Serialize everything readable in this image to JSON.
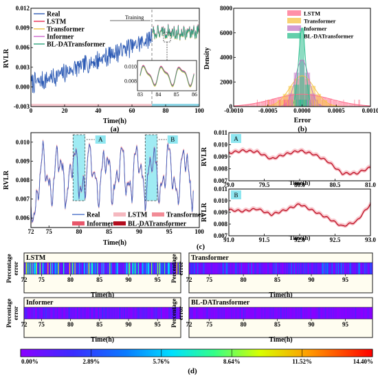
{
  "figure": {
    "panel_labels": [
      "(a)",
      "(b)",
      "(c)",
      "(d)"
    ]
  },
  "chart_data": [
    {
      "id": "a",
      "type": "line",
      "xlabel": "Time(h)",
      "ylabel": "RVLR",
      "xlim": [
        0,
        100
      ],
      "ylim": [
        -0.003,
        0.012
      ],
      "xticks": [
        "0",
        "20",
        "40",
        "60",
        "80",
        "100"
      ],
      "yticks": [
        "-0.003",
        "0.000",
        "0.003",
        "0.006",
        "0.009",
        "0.012"
      ],
      "legend": [
        "Real",
        "LSTM",
        "Transformer",
        "Informer",
        "BL-DATransformer"
      ],
      "colors": {
        "Real": "#2d5bb5",
        "LSTM": "#e8294e",
        "Transformer": "#f0c040",
        "Informer": "#cc66cc",
        "BL-DATransformer": "#2aa37b"
      },
      "training_label": "Training",
      "training_end": 72,
      "trend": {
        "x": [
          0,
          10,
          20,
          30,
          40,
          50,
          60,
          70,
          72,
          80,
          90,
          100
        ],
        "y": [
          0.0005,
          0.0012,
          0.0022,
          0.0032,
          0.0041,
          0.0052,
          0.0062,
          0.0072,
          0.0082,
          0.0083,
          0.0081,
          0.0085
        ]
      },
      "inset": {
        "xlim": [
          83,
          86
        ],
        "ylim": [
          0.007,
          0.0105
        ],
        "xticks": [
          "83",
          "84",
          "85",
          "86"
        ],
        "yticks": [
          "0.008",
          "0.010"
        ]
      }
    },
    {
      "id": "b",
      "type": "bar",
      "xlabel": "Error",
      "ylabel": "Density",
      "xlim": [
        -0.001,
        0.001
      ],
      "ylim": [
        0,
        8000
      ],
      "xticks": [
        "-0.0010",
        "-0.0005",
        "0.0000",
        "0.0005",
        "0.0010"
      ],
      "yticks": [
        "0",
        "2000",
        "4000",
        "6000",
        "8000"
      ],
      "legend": [
        "LSTM",
        "Transformer",
        "Informer",
        "BL-DATransformer"
      ],
      "colors": {
        "LSTM": "#ff6b8a",
        "Transformer": "#f5c343",
        "Informer": "#c27ac7",
        "BL-DATransformer": "#2fbf8f"
      },
      "series": [
        {
          "name": "LSTM",
          "sigma": 0.00042,
          "peak": 1000
        },
        {
          "name": "Transformer",
          "sigma": 0.00018,
          "peak": 2500
        },
        {
          "name": "Informer",
          "sigma": 0.0001,
          "peak": 3800
        },
        {
          "name": "BL-DATransformer",
          "sigma": 5e-05,
          "peak": 6400
        }
      ]
    },
    {
      "id": "c-main",
      "type": "line",
      "xlabel": "Time(h)",
      "ylabel": "RVLR",
      "xlim": [
        72,
        100
      ],
      "ylim": [
        0.0055,
        0.0105
      ],
      "xticks": [
        "72",
        "75",
        "80",
        "85",
        "90",
        "95",
        "100"
      ],
      "yticks": [
        "0.006",
        "0.007",
        "0.008",
        "0.009",
        "0.010"
      ],
      "legend": [
        "Real",
        "LSTM",
        "Transformer",
        "Informer",
        "BL-DATransformer"
      ],
      "colors": {
        "Real": "#3b63c4",
        "LSTM": "#f5b8bf",
        "Transformer": "#f28b96",
        "Informer": "#e8576b",
        "BL-DATransformer": "#b30d1e"
      },
      "zones": [
        {
          "label": "A",
          "x": [
            79,
            81
          ]
        },
        {
          "label": "B",
          "x": [
            91,
            93
          ]
        }
      ]
    },
    {
      "id": "c-A",
      "type": "line",
      "label": "A",
      "xlabel": "Time(h)",
      "ylabel": "RVLR",
      "xlim": [
        79,
        81
      ],
      "ylim": [
        0.007,
        0.011
      ],
      "xticks": [
        "79.0",
        "79.5",
        "80.0",
        "80.5",
        "81.0"
      ],
      "yticks": [
        "0.007",
        "0.008",
        "0.009",
        "0.010",
        "0.011"
      ],
      "keypoints": {
        "x": [
          79.0,
          79.2,
          79.4,
          79.6,
          79.8,
          80.0,
          80.2,
          80.4,
          80.6,
          80.8,
          81.0
        ],
        "y": [
          0.0093,
          0.0095,
          0.0094,
          0.0088,
          0.0092,
          0.0095,
          0.0092,
          0.0086,
          0.0076,
          0.0076,
          0.0081
        ]
      }
    },
    {
      "id": "c-B",
      "type": "line",
      "label": "B",
      "xlabel": "Time(h)",
      "ylabel": "RVLR",
      "xlim": [
        91,
        93
      ],
      "ylim": [
        0.007,
        0.011
      ],
      "xticks": [
        "91.0",
        "91.5",
        "92.0",
        "92.5",
        "93.0"
      ],
      "yticks": [
        "0.007",
        "0.008",
        "0.009",
        "0.010",
        "0.011"
      ],
      "keypoints": {
        "x": [
          91.0,
          91.2,
          91.4,
          91.6,
          91.8,
          92.0,
          92.2,
          92.4,
          92.6,
          92.8,
          93.0
        ],
        "y": [
          0.0092,
          0.0091,
          0.0093,
          0.0088,
          0.0092,
          0.0097,
          0.0091,
          0.0085,
          0.0078,
          0.0082,
          0.0097
        ]
      }
    },
    {
      "id": "d",
      "type": "heatmap",
      "xlabel": "Time(h)",
      "ylabel": "Percentage error",
      "xlim": [
        72,
        99
      ],
      "xticks": [
        "72",
        "75",
        "80",
        "85",
        "90",
        "95"
      ],
      "strips": [
        {
          "name": "LSTM",
          "max_level": 0.85
        },
        {
          "name": "Transformer",
          "max_level": 0.35
        },
        {
          "name": "Informer",
          "max_level": 0.18
        },
        {
          "name": "BL-DATransformer",
          "max_level": 0.12
        }
      ],
      "colorbar": {
        "min": 0,
        "max": 14.4,
        "ticks": [
          "0.00%",
          "2.89%",
          "5.76%",
          "8.64%",
          "11.52%",
          "14.40%"
        ]
      }
    }
  ]
}
